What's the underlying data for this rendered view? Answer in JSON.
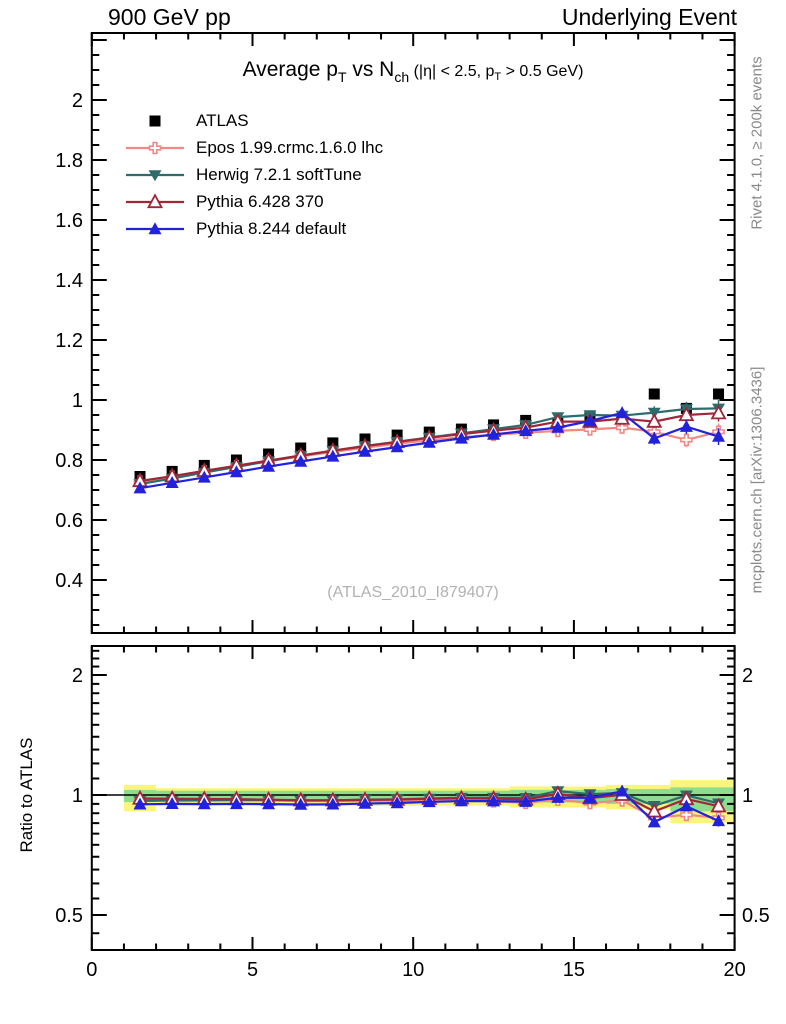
{
  "header": {
    "left": "900 GeV pp",
    "right": "Underlying Event"
  },
  "title": {
    "parts": [
      "Average p",
      "T",
      " vs N",
      "ch",
      " (|η| < 2.5, p",
      "T",
      " > 0.5 GeV)"
    ]
  },
  "legend": {
    "items": [
      {
        "label": "ATLAS",
        "marker": "filled-square",
        "color": "#000000",
        "line": false
      },
      {
        "label": "Epos 1.99.crmc.1.6.0 lhc",
        "marker": "open-cross",
        "color": "#f28884",
        "line": true
      },
      {
        "label": "Herwig 7.2.1 softTune",
        "marker": "filled-triangle-down",
        "color": "#2e6c6c",
        "line": true
      },
      {
        "label": "Pythia 6.428 370",
        "marker": "open-triangle-up",
        "color": "#a02638",
        "line": true
      },
      {
        "label": "Pythia 8.244 default",
        "marker": "filled-triangle-up",
        "color": "#2222dd",
        "line": true
      }
    ]
  },
  "watermark": "(ATLAS_2010_I879407)",
  "side_texts": {
    "rivet": "Rivet 4.1.0, ≥ 200k events",
    "mcplots": "mcplots.cern.ch [arXiv:1306.3436]"
  },
  "ratio_axis_title": "Ratio to ATLAS",
  "axes": {
    "x": {
      "range": [
        0,
        20
      ],
      "minor_step": 1,
      "ticks": [
        {
          "v": 0,
          "label": "0"
        },
        {
          "v": 5,
          "label": "5"
        },
        {
          "v": 10,
          "label": "10"
        },
        {
          "v": 15,
          "label": "15"
        },
        {
          "v": 20,
          "label": "20"
        }
      ]
    },
    "y_main": {
      "range": [
        0.223,
        2.223
      ],
      "minor_step": 0.05,
      "major_step": 0.2,
      "ticks": [
        {
          "v": 0.4,
          "label": "0.4"
        },
        {
          "v": 0.6,
          "label": "0.6"
        },
        {
          "v": 0.8,
          "label": "0.8"
        },
        {
          "v": 1,
          "label": "1"
        },
        {
          "v": 1.2,
          "label": "1.2"
        },
        {
          "v": 1.4,
          "label": "1.4"
        },
        {
          "v": 1.6,
          "label": "1.6"
        },
        {
          "v": 1.8,
          "label": "1.8"
        },
        {
          "v": 2,
          "label": "2"
        }
      ]
    },
    "y_ratio": {
      "range": [
        0.409,
        2.365
      ],
      "scale": "log",
      "ticks": [
        {
          "v": 0.5,
          "label": "0.5"
        },
        {
          "v": 1,
          "label": "1"
        },
        {
          "v": 2,
          "label": "2"
        }
      ],
      "minors": [
        0.45,
        0.55,
        0.6,
        0.65,
        0.7,
        0.75,
        0.8,
        0.85,
        0.9,
        0.95,
        1.1,
        1.2,
        1.3,
        1.4,
        1.5,
        1.6,
        1.7,
        1.8,
        1.9,
        2.1,
        2.2,
        2.3
      ]
    }
  },
  "chart_data": {
    "type": "line",
    "title": "Average pT vs Nch (|η| < 2.5, pT > 0.5 GeV)",
    "xlabel": "",
    "ylabel": "",
    "xlim": [
      0,
      20
    ],
    "main_ylim": [
      0.223,
      2.223
    ],
    "ratio_ylim": [
      0.409,
      2.365
    ],
    "ratio_yscale": "log",
    "ratio_reference": "ATLAS",
    "x": [
      1.5,
      2.5,
      3.5,
      4.5,
      5.5,
      6.5,
      7.5,
      8.5,
      9.5,
      10.5,
      11.5,
      12.5,
      13.5,
      14.5,
      15.5,
      16.5,
      17.5,
      18.5,
      19.5
    ],
    "series": [
      {
        "name": "ATLAS",
        "marker": "filled-square",
        "color": "#000000",
        "line": false,
        "values": [
          0.745,
          0.762,
          0.782,
          0.8,
          0.82,
          0.84,
          0.857,
          0.87,
          0.883,
          0.893,
          0.903,
          0.917,
          0.932,
          0.922,
          0.945,
          0.937,
          1.02,
          0.972,
          1.02
        ]
      },
      {
        "name": "Epos 1.99.crmc.1.6.0 lhc",
        "marker": "open-cross",
        "color": "#f28884",
        "line": true,
        "values": [
          0.728,
          0.744,
          0.762,
          0.779,
          0.796,
          0.812,
          0.827,
          0.841,
          0.854,
          0.866,
          0.876,
          0.884,
          0.891,
          0.897,
          0.902,
          0.908,
          0.894,
          0.867,
          0.894
        ]
      },
      {
        "name": "Herwig 7.2.1 softTune",
        "marker": "filled-triangle-down",
        "color": "#2e6c6c",
        "line": true,
        "values": [
          0.72,
          0.738,
          0.758,
          0.777,
          0.796,
          0.814,
          0.831,
          0.847,
          0.861,
          0.875,
          0.889,
          0.903,
          0.917,
          0.943,
          0.95,
          0.948,
          0.958,
          0.97,
          0.972
        ]
      },
      {
        "name": "Pythia 6.428 370",
        "marker": "open-triangle-up",
        "color": "#a02638",
        "line": true,
        "values": [
          0.73,
          0.746,
          0.764,
          0.781,
          0.798,
          0.815,
          0.831,
          0.846,
          0.86,
          0.874,
          0.886,
          0.898,
          0.908,
          0.928,
          0.928,
          0.938,
          0.928,
          0.95,
          0.956
        ]
      },
      {
        "name": "Pythia 8.244 default",
        "marker": "filled-triangle-up",
        "color": "#2222dd",
        "line": true,
        "values": [
          0.706,
          0.724,
          0.742,
          0.76,
          0.778,
          0.795,
          0.812,
          0.828,
          0.843,
          0.858,
          0.872,
          0.885,
          0.897,
          0.908,
          0.93,
          0.957,
          0.872,
          0.911,
          0.878
        ]
      }
    ],
    "errors_data": [
      0.006,
      0.006,
      0.006,
      0.006,
      0.006,
      0.006,
      0.006,
      0.006,
      0.006,
      0.006,
      0.006,
      0.006,
      0.006,
      0.006,
      0.006,
      0.006,
      0.006,
      0.006,
      0.006
    ],
    "errors_mc": [
      0.006,
      0.006,
      0.006,
      0.006,
      0.006,
      0.006,
      0.007,
      0.007,
      0.008,
      0.008,
      0.009,
      0.01,
      0.011,
      0.013,
      0.015,
      0.018,
      0.021,
      0.024,
      0.028
    ],
    "band_colors": {
      "yellow": "#fbf57c",
      "green": "#8edd8e"
    },
    "bands": [
      {
        "x0": 1,
        "x1": 2,
        "yellow": [
          0.91,
          1.06
        ],
        "green": [
          0.96,
          1.03
        ]
      },
      {
        "x0": 2,
        "x1": 13,
        "yellow": [
          0.94,
          1.04
        ],
        "green": [
          0.963,
          1.025
        ]
      },
      {
        "x0": 13,
        "x1": 16,
        "yellow": [
          0.93,
          1.05
        ],
        "green": [
          0.958,
          1.03
        ]
      },
      {
        "x0": 16,
        "x1": 18,
        "yellow": [
          0.92,
          1.06
        ],
        "green": [
          0.95,
          1.035
        ]
      },
      {
        "x0": 18,
        "x1": 20,
        "yellow": [
          0.85,
          1.09
        ],
        "green": [
          0.91,
          1.045
        ]
      }
    ]
  }
}
